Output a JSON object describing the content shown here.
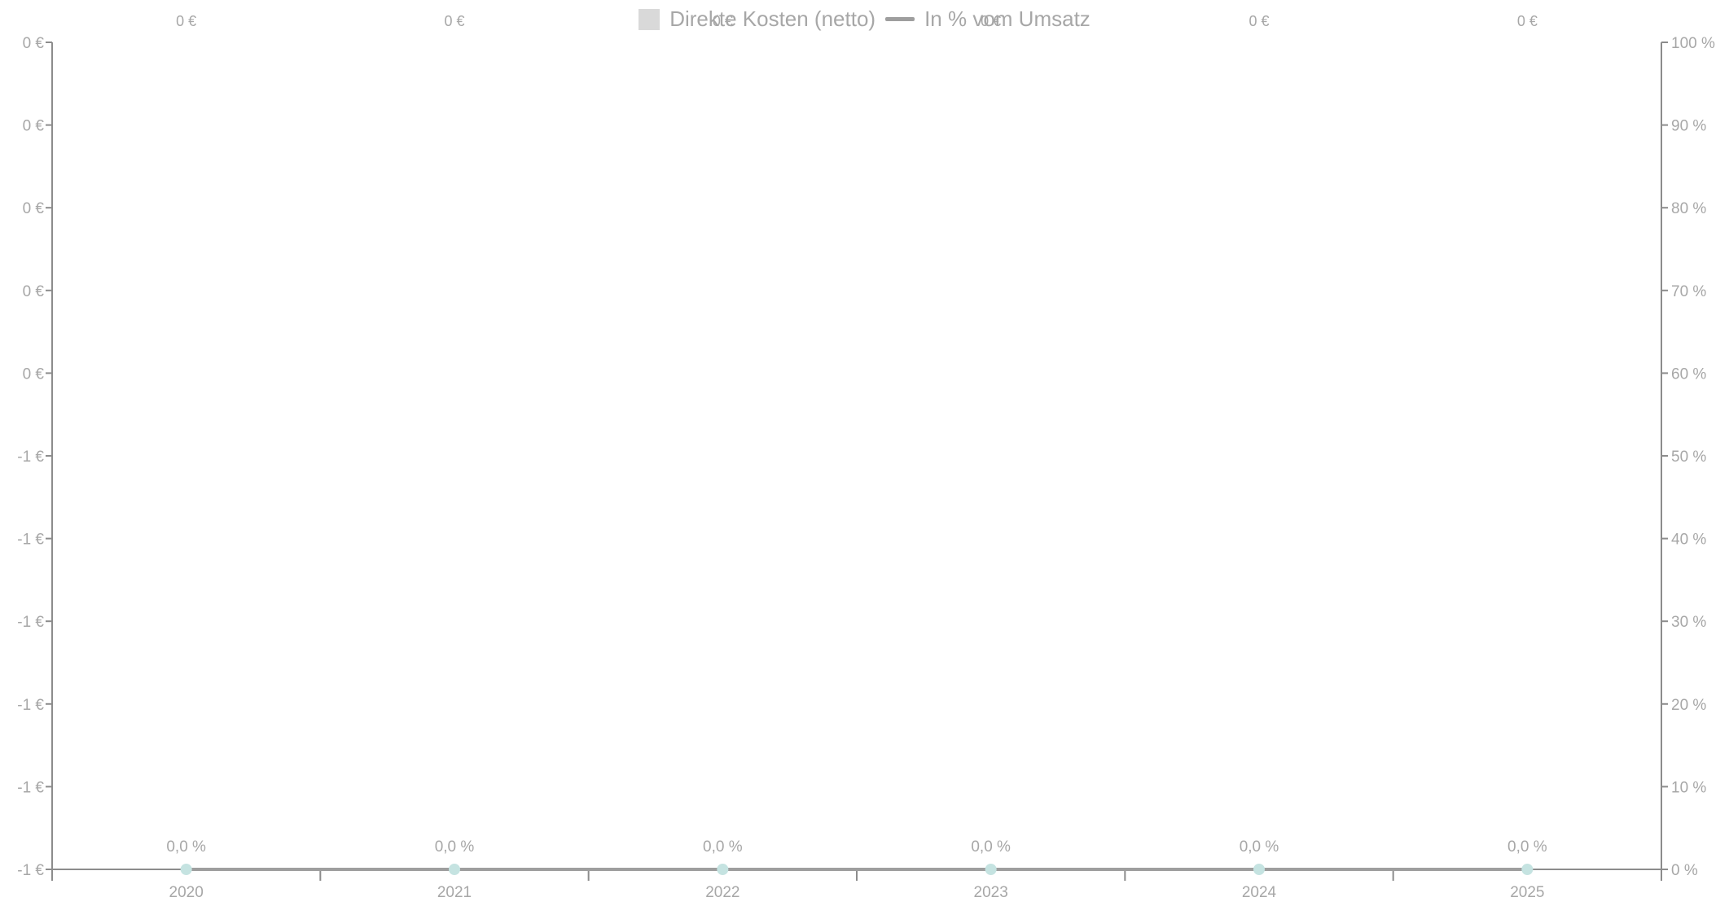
{
  "colors": {
    "bar": "#d9d9d9",
    "line": "#9e9e9e",
    "marker": "#c5e3e1",
    "axis": "#8c8c8c",
    "text": "#a7a7a7"
  },
  "chart_data": {
    "type": "bar",
    "categories": [
      "2020",
      "2021",
      "2022",
      "2023",
      "2024",
      "2025"
    ],
    "series": [
      {
        "name": "Direkte Kosten (netto)",
        "type": "bar",
        "axis": "left",
        "values": [
          0,
          0,
          0,
          0,
          0,
          0
        ],
        "data_labels": [
          "0 €",
          "0 €",
          "0 €",
          "0 €",
          "0 €",
          "0 €"
        ]
      },
      {
        "name": "In % vom Umsatz",
        "type": "line",
        "axis": "right",
        "values": [
          0,
          0,
          0,
          0,
          0,
          0
        ],
        "data_labels": [
          "0,0 %",
          "0,0 %",
          "0,0 %",
          "0,0 %",
          "0,0 %",
          "0,0 %"
        ]
      }
    ],
    "y_left_ticks": [
      "0 €",
      "0 €",
      "0 €",
      "0 €",
      "0 €",
      "-1 €",
      "-1 €",
      "-1 €",
      "-1 €",
      "-1 €",
      "-1 €"
    ],
    "y_right_ticks": [
      "100 %",
      "90 %",
      "80 %",
      "70 %",
      "60 %",
      "50 %",
      "40 %",
      "30 %",
      "20 %",
      "10 %",
      "0 %"
    ],
    "y_right_range": [
      0,
      100
    ],
    "legend_position": "top-center",
    "grid": false
  }
}
